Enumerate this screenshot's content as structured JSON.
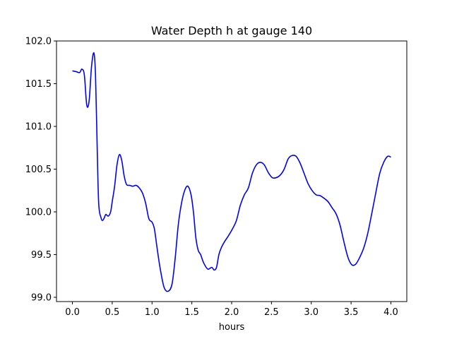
{
  "chart_data": {
    "type": "line",
    "title": "Water Depth h at gauge 140",
    "xlabel": "hours",
    "ylabel": "",
    "xlim": [
      -0.2,
      4.2
    ],
    "ylim": [
      98.95,
      102.0
    ],
    "grid": false,
    "xticks": [
      0.0,
      0.5,
      1.0,
      1.5,
      2.0,
      2.5,
      3.0,
      3.5,
      4.0
    ],
    "xtick_labels": [
      "0.0",
      "0.5",
      "1.0",
      "1.5",
      "2.0",
      "2.5",
      "3.0",
      "3.5",
      "4.0"
    ],
    "yticks": [
      99.0,
      99.5,
      100.0,
      100.5,
      101.0,
      101.5,
      102.0
    ],
    "ytick_labels": [
      "99.0",
      "99.5",
      "100.0",
      "100.5",
      "101.0",
      "101.5",
      "102.0"
    ],
    "series": [
      {
        "color": "#0000ff",
        "x": [
          0.0,
          0.05,
          0.09,
          0.12,
          0.15,
          0.18,
          0.21,
          0.24,
          0.27,
          0.29,
          0.31,
          0.33,
          0.36,
          0.38,
          0.4,
          0.42,
          0.45,
          0.48,
          0.5,
          0.53,
          0.56,
          0.59,
          0.62,
          0.65,
          0.68,
          0.72,
          0.76,
          0.8,
          0.84,
          0.88,
          0.92,
          0.96,
          1.0,
          1.03,
          1.06,
          1.1,
          1.15,
          1.2,
          1.25,
          1.29,
          1.33,
          1.37,
          1.41,
          1.45,
          1.49,
          1.52,
          1.55,
          1.58,
          1.61,
          1.65,
          1.7,
          1.75,
          1.78,
          1.81,
          1.84,
          1.87,
          1.91,
          1.96,
          2.01,
          2.06,
          2.11,
          2.16,
          2.21,
          2.26,
          2.31,
          2.36,
          2.41,
          2.46,
          2.51,
          2.56,
          2.61,
          2.66,
          2.71,
          2.76,
          2.81,
          2.86,
          2.91,
          2.96,
          3.01,
          3.06,
          3.11,
          3.16,
          3.21,
          3.26,
          3.31,
          3.36,
          3.41,
          3.46,
          3.51,
          3.56,
          3.61,
          3.66,
          3.71,
          3.76,
          3.81,
          3.86,
          3.91,
          3.96,
          4.0
        ],
        "y": [
          101.65,
          101.64,
          101.63,
          101.67,
          101.6,
          101.25,
          101.3,
          101.7,
          101.86,
          101.6,
          100.8,
          100.1,
          99.93,
          99.9,
          99.93,
          99.97,
          99.95,
          100.0,
          100.12,
          100.3,
          100.55,
          100.67,
          100.6,
          100.42,
          100.32,
          100.31,
          100.3,
          100.31,
          100.28,
          100.22,
          100.1,
          99.92,
          99.88,
          99.8,
          99.6,
          99.35,
          99.12,
          99.07,
          99.15,
          99.45,
          99.85,
          100.1,
          100.25,
          100.3,
          100.2,
          100.0,
          99.7,
          99.55,
          99.5,
          99.4,
          99.33,
          99.35,
          99.32,
          99.35,
          99.5,
          99.58,
          99.65,
          99.72,
          99.8,
          99.9,
          100.08,
          100.2,
          100.28,
          100.45,
          100.55,
          100.58,
          100.55,
          100.46,
          100.4,
          100.4,
          100.43,
          100.5,
          100.62,
          100.66,
          100.65,
          100.57,
          100.45,
          100.33,
          100.25,
          100.2,
          100.19,
          100.16,
          100.12,
          100.05,
          99.98,
          99.85,
          99.65,
          99.47,
          99.38,
          99.39,
          99.47,
          99.58,
          99.75,
          99.98,
          100.22,
          100.45,
          100.58,
          100.65,
          100.64
        ]
      }
    ]
  }
}
